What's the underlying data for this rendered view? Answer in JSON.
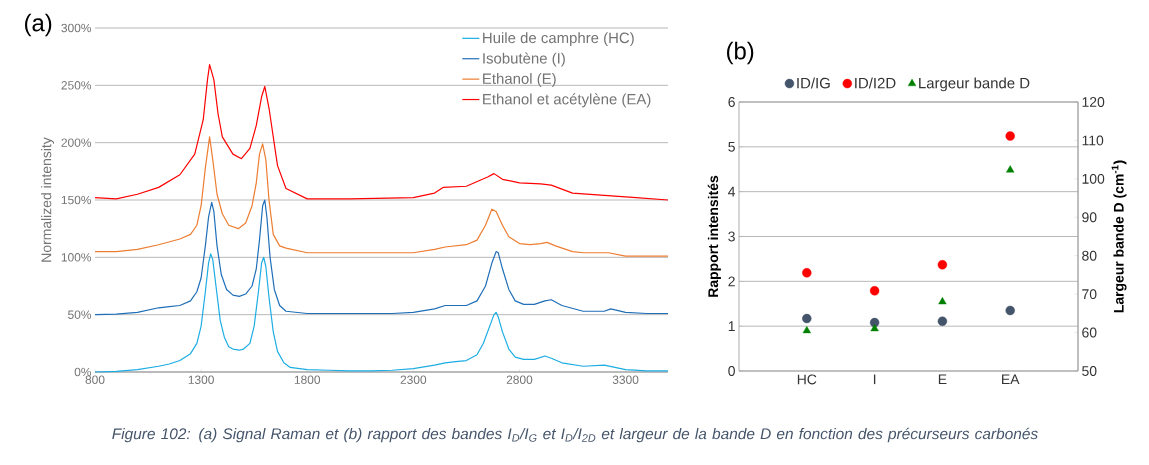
{
  "chart_data": [
    {
      "type": "line",
      "title": "(a)",
      "ylabel": "Normalized intensity",
      "xlim": [
        800,
        3500
      ],
      "xticks": [
        800,
        1300,
        1800,
        2300,
        2800,
        3300
      ],
      "ylim": [
        0,
        300
      ],
      "yticks": [
        {
          "value": 0,
          "label": "0%"
        },
        {
          "value": 50,
          "label": "50%"
        },
        {
          "value": 100,
          "label": "100%"
        },
        {
          "value": 150,
          "label": "150%"
        },
        {
          "value": 200,
          "label": "200%"
        },
        {
          "value": 250,
          "label": "250%"
        },
        {
          "value": 300,
          "label": "300%"
        }
      ],
      "grid": "y",
      "legend": "top right",
      "marker": "none",
      "line_style": "solid",
      "annotations": [
        "*Figure 102: (a) Signal Raman et (b) rapport des bandes I$_{D}$/I$_{G}$ et I$_{D}$/I$_{2D}$ et largeur de la bande D en fonction des précurseurs carbonés*"
      ],
      "series": [
        {
          "name": "Huile de camphre (HC)",
          "color": "#1cade4",
          "x": [
            800,
            900,
            1000,
            1100,
            1150,
            1200,
            1250,
            1280,
            1300,
            1320,
            1335,
            1345,
            1355,
            1370,
            1390,
            1410,
            1430,
            1450,
            1480,
            1500,
            1530,
            1550,
            1570,
            1585,
            1595,
            1605,
            1620,
            1640,
            1660,
            1690,
            1720,
            1800,
            1900,
            2000,
            2100,
            2200,
            2300,
            2400,
            2450,
            2500,
            2550,
            2600,
            2630,
            2660,
            2680,
            2690,
            2700,
            2720,
            2750,
            2780,
            2820,
            2870,
            2920,
            2950,
            3000,
            3100,
            3200,
            3250,
            3300,
            3400,
            3500
          ],
          "values": [
            0,
            0.5,
            2,
            5,
            7,
            10,
            16,
            25,
            40,
            70,
            95,
            103,
            98,
            75,
            45,
            30,
            22,
            20,
            19,
            20,
            25,
            40,
            70,
            95,
            100,
            92,
            65,
            35,
            18,
            8,
            4,
            2,
            1.5,
            1,
            1,
            1.5,
            3,
            6,
            8,
            9,
            10,
            15,
            25,
            40,
            50,
            52,
            48,
            35,
            20,
            13,
            11,
            11,
            14,
            12,
            8,
            5,
            6,
            4,
            2,
            1,
            1
          ]
        },
        {
          "name": "Isobutène (I)",
          "color": "#1f6fb8",
          "x": [
            800,
            900,
            1000,
            1100,
            1150,
            1200,
            1250,
            1280,
            1300,
            1320,
            1335,
            1350,
            1360,
            1375,
            1395,
            1420,
            1450,
            1480,
            1510,
            1540,
            1560,
            1575,
            1590,
            1600,
            1610,
            1625,
            1645,
            1670,
            1700,
            1800,
            1900,
            2000,
            2100,
            2200,
            2300,
            2400,
            2450,
            2500,
            2550,
            2600,
            2640,
            2670,
            2690,
            2700,
            2720,
            2750,
            2780,
            2820,
            2870,
            2920,
            2950,
            3000,
            3100,
            3200,
            3230,
            3300,
            3400,
            3500
          ],
          "values": [
            50,
            50.5,
            52,
            56,
            57,
            58,
            62,
            70,
            82,
            110,
            135,
            148,
            140,
            110,
            85,
            72,
            67,
            66,
            68,
            75,
            90,
            115,
            145,
            150,
            135,
            100,
            72,
            58,
            53,
            51,
            51,
            51,
            51,
            51,
            52,
            55,
            58,
            58,
            58,
            62,
            75,
            95,
            105,
            104,
            90,
            72,
            62,
            59,
            59,
            62,
            63,
            58,
            53,
            53,
            55,
            52,
            51,
            51
          ]
        },
        {
          "name": "Ethanol (E)",
          "color": "#ed7d31",
          "x": [
            800,
            900,
            1000,
            1100,
            1200,
            1250,
            1280,
            1300,
            1320,
            1340,
            1355,
            1375,
            1400,
            1430,
            1475,
            1510,
            1540,
            1560,
            1575,
            1590,
            1605,
            1620,
            1640,
            1670,
            1700,
            1800,
            2000,
            2300,
            2400,
            2450,
            2550,
            2600,
            2640,
            2670,
            2690,
            2720,
            2750,
            2800,
            2850,
            2900,
            2930,
            2970,
            3050,
            3100,
            3220,
            3300,
            3350,
            3500
          ],
          "values": [
            105,
            105,
            107,
            111,
            116,
            120,
            128,
            145,
            178,
            205,
            185,
            155,
            138,
            128,
            125,
            130,
            145,
            165,
            190,
            199,
            185,
            150,
            120,
            110,
            108,
            104,
            104,
            104,
            107,
            109,
            111,
            115,
            128,
            142,
            140,
            128,
            118,
            112,
            111,
            112,
            113,
            110,
            105,
            104,
            104,
            101,
            101,
            101
          ]
        },
        {
          "name": "Ethanol et acétylène (EA)",
          "color": "#ff0000",
          "x": [
            800,
            900,
            1000,
            1100,
            1200,
            1270,
            1310,
            1330,
            1340,
            1360,
            1380,
            1400,
            1450,
            1490,
            1530,
            1560,
            1585,
            1600,
            1620,
            1660,
            1700,
            1800,
            2000,
            2300,
            2400,
            2440,
            2550,
            2650,
            2680,
            2720,
            2800,
            2900,
            2950,
            3050,
            3200,
            3350,
            3500
          ],
          "values": [
            152,
            151,
            155,
            161,
            172,
            190,
            220,
            255,
            268,
            255,
            225,
            205,
            190,
            186,
            195,
            215,
            240,
            249,
            230,
            180,
            160,
            151,
            151,
            152,
            156,
            161,
            162,
            170,
            173,
            168,
            165,
            164,
            163,
            156,
            154,
            152,
            150
          ]
        }
      ]
    },
    {
      "type": "scatter",
      "title": "(b)",
      "ylabel": "Rapport intensités",
      "y2label": "Largeur bande D (cm$^{-1}$)",
      "categories": [
        "HC",
        "I",
        "E",
        "EA"
      ],
      "ylim": [
        0,
        6
      ],
      "yticks": [
        0,
        1,
        2,
        3,
        4,
        5,
        6
      ],
      "y2lim": [
        50,
        120
      ],
      "y2ticks": [
        50,
        60,
        70,
        80,
        90,
        100,
        110,
        120
      ],
      "grid": "y",
      "legend": "top",
      "series": [
        {
          "name": "ID/IG",
          "color": "#44546a",
          "marker": "circle",
          "values": [
            1.17,
            1.08,
            1.11,
            1.35
          ]
        },
        {
          "name": "ID/I2D",
          "color": "#ff0000",
          "marker": "circle",
          "values": [
            2.19,
            1.79,
            2.37,
            5.24
          ]
        },
        {
          "name": "Largeur bande D",
          "color": "#008000",
          "marker": "triangle",
          "axis": "y2",
          "values": [
            60.5,
            61,
            68,
            102.3
          ]
        }
      ]
    }
  ]
}
